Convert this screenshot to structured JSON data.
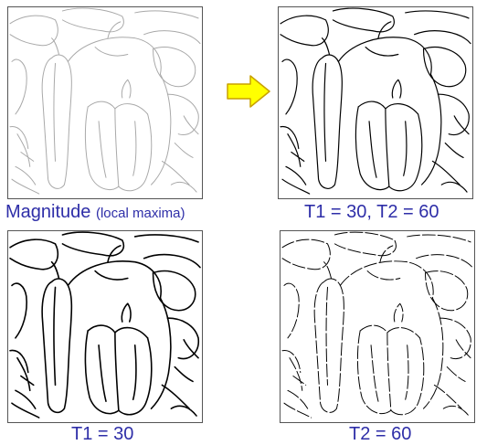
{
  "panels": [
    {
      "id": "magnitude-local-maxima",
      "style": "faint-gray-edges"
    },
    {
      "id": "t1-30-t2-60",
      "style": "black-edges"
    },
    {
      "id": "t1-30",
      "style": "dense-black-edges"
    },
    {
      "id": "t2-60",
      "style": "sparse-black-edges"
    }
  ],
  "captions": {
    "top_left_main": "Magnitude",
    "top_left_paren": "(local maxima)",
    "top_right": "T1 = 30, T2 = 60",
    "bottom_left": "T1 = 30",
    "bottom_right": "T2 = 60"
  },
  "arrow": {
    "icon": "right-arrow-icon",
    "fill": "#ffff00",
    "stroke": "#c8a000"
  },
  "colors": {
    "caption_text": "#2e2ea8",
    "faint_edges": "#9a9a9a",
    "strong_edges": "#000000"
  }
}
